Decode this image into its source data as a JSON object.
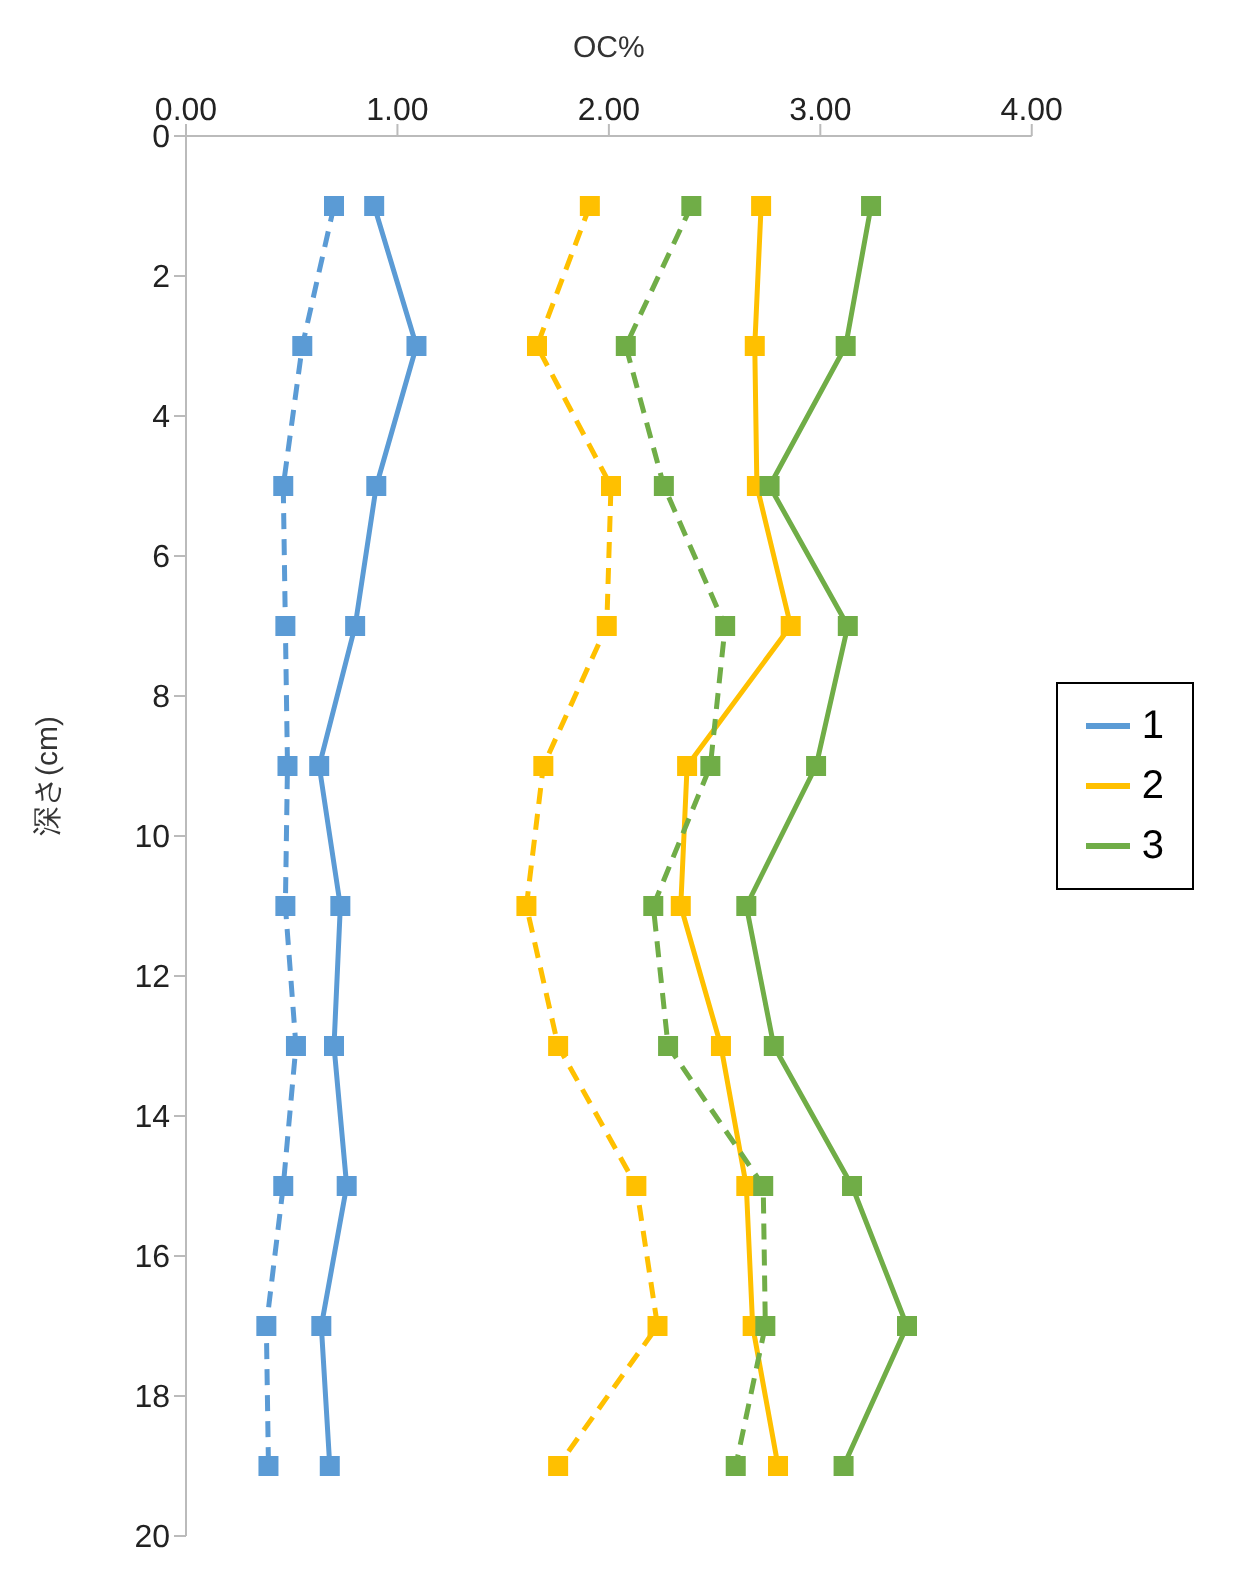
{
  "chart_data": {
    "type": "line",
    "xlabel": "OC%",
    "ylabel": "深さ(cm)",
    "xlim": [
      0,
      4
    ],
    "xticks": [
      {
        "value": 0,
        "label": "0.00"
      },
      {
        "value": 1,
        "label": "1.00"
      },
      {
        "value": 2,
        "label": "2.00"
      },
      {
        "value": 3,
        "label": "3.00"
      },
      {
        "value": 4,
        "label": "4.00"
      }
    ],
    "ylim": [
      20,
      0
    ],
    "yticks": [
      0,
      2,
      4,
      6,
      8,
      10,
      12,
      14,
      16,
      18,
      20
    ],
    "grid": false,
    "legend": "right",
    "marker": "square",
    "series": [
      {
        "name": "1",
        "color": "#5b9bd5",
        "line_style": "solid",
        "x": [
          0.89,
          1.09,
          0.9,
          0.8,
          0.63,
          0.73,
          0.7,
          0.76,
          0.64,
          0.68
        ],
        "values": [
          1,
          3,
          5,
          7,
          9,
          11,
          13,
          15,
          17,
          19
        ]
      },
      {
        "color": "#5b9bd5",
        "line_style": "dashed",
        "x": [
          0.7,
          0.55,
          0.46,
          0.47,
          0.48,
          0.47,
          0.52,
          0.46,
          0.38,
          0.39
        ],
        "values": [
          1,
          3,
          5,
          7,
          9,
          11,
          13,
          15,
          17,
          19
        ]
      },
      {
        "name": "2",
        "color": "#ffc000",
        "line_style": "solid",
        "x": [
          2.72,
          2.69,
          2.7,
          2.86,
          2.37,
          2.34,
          2.53,
          2.65,
          2.68,
          2.8
        ],
        "values": [
          1,
          3,
          5,
          7,
          9,
          11,
          13,
          15,
          17,
          19
        ]
      },
      {
        "color": "#ffc000",
        "line_style": "dashed",
        "x": [
          1.91,
          1.66,
          2.01,
          1.99,
          1.69,
          1.61,
          1.76,
          2.13,
          2.23,
          1.76
        ],
        "values": [
          1,
          3,
          5,
          7,
          9,
          11,
          13,
          15,
          17,
          19
        ]
      },
      {
        "name": "3",
        "color": "#70ad47",
        "line_style": "solid",
        "x": [
          3.24,
          3.12,
          2.76,
          3.13,
          2.98,
          2.65,
          2.78,
          3.15,
          3.41,
          3.11
        ],
        "values": [
          1,
          3,
          5,
          7,
          9,
          11,
          13,
          15,
          17,
          19
        ]
      },
      {
        "color": "#70ad47",
        "line_style": "dashed",
        "x": [
          2.39,
          2.08,
          2.26,
          2.55,
          2.48,
          2.21,
          2.28,
          2.73,
          2.74,
          2.6
        ],
        "values": [
          1,
          3,
          5,
          7,
          9,
          11,
          13,
          15,
          17,
          19
        ]
      }
    ]
  }
}
